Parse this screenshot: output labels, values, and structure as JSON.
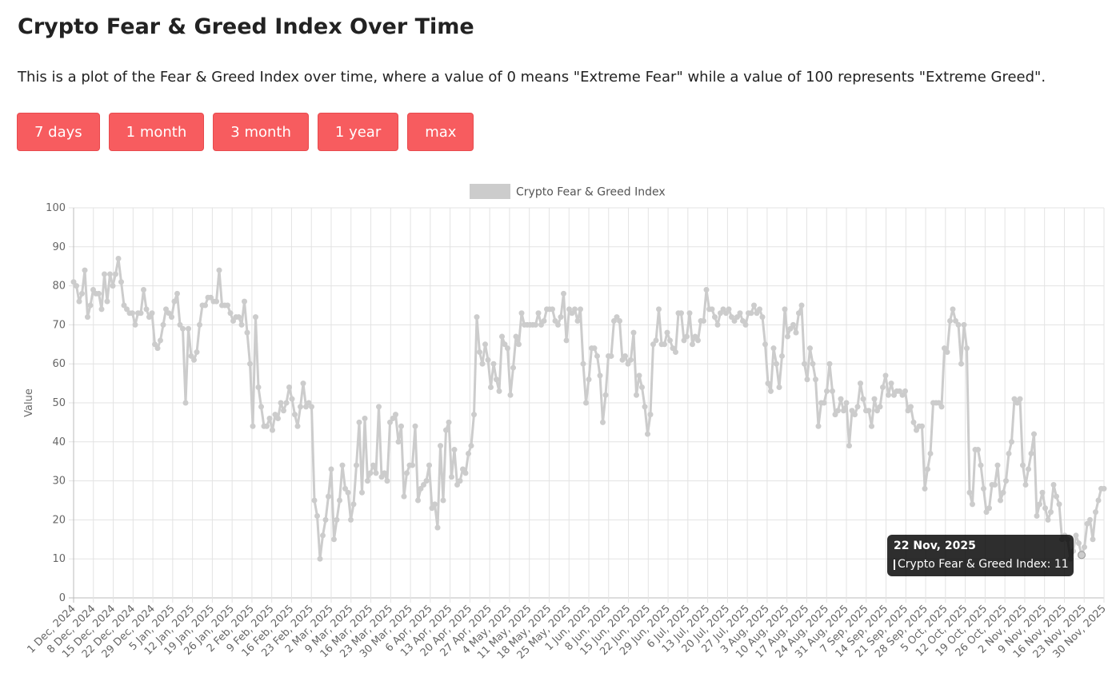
{
  "page": {
    "title": "Crypto Fear & Greed Index Over Time",
    "description": "This is a plot of the Fear & Greed Index over time, where a value of 0 means \"Extreme Fear\" while a value of 100 represents \"Extreme Greed\"."
  },
  "buttons": [
    {
      "label": "7 days"
    },
    {
      "label": "1 month"
    },
    {
      "label": "3 month"
    },
    {
      "label": "1 year"
    },
    {
      "label": "max"
    }
  ],
  "colors": {
    "button": "#f75c5f",
    "line": "#cccccc"
  },
  "tooltip": {
    "title": "22 Nov, 2025",
    "series": "Crypto Fear & Greed Index",
    "value": 11,
    "text": "Crypto Fear & Greed Index: 11"
  },
  "chart_data": {
    "type": "line",
    "ylabel": "Value",
    "ylim": [
      0,
      100
    ],
    "yticks": [
      0,
      10,
      20,
      30,
      40,
      50,
      60,
      70,
      80,
      90,
      100
    ],
    "grid": true,
    "legend_position": "top",
    "x_labels": [
      "1 Dec, 2024",
      "8 Dec, 2024",
      "15 Dec, 2024",
      "22 Dec, 2024",
      "29 Dec, 2024",
      "5 Jan, 2025",
      "12 Jan, 2025",
      "19 Jan, 2025",
      "26 Jan, 2025",
      "2 Feb, 2025",
      "9 Feb, 2025",
      "16 Feb, 2025",
      "23 Feb, 2025",
      "2 Mar, 2025",
      "9 Mar, 2025",
      "16 Mar, 2025",
      "23 Mar, 2025",
      "30 Mar, 2025",
      "6 Apr, 2025",
      "13 Apr, 2025",
      "20 Apr, 2025",
      "27 Apr, 2025",
      "4 May, 2025",
      "11 May, 2025",
      "18 May, 2025",
      "25 May, 2025",
      "1 Jun, 2025",
      "8 Jun, 2025",
      "15 Jun, 2025",
      "22 Jun, 2025",
      "29 Jun, 2025",
      "6 Jul, 2025",
      "13 Jul, 2025",
      "20 Jul, 2025",
      "27 Jul, 2025",
      "3 Aug, 2025",
      "10 Aug, 2025",
      "17 Aug, 2025",
      "24 Aug, 2025",
      "31 Aug, 2025",
      "7 Sep, 2025",
      "14 Sep, 2025",
      "21 Sep, 2025",
      "28 Sep, 2025",
      "5 Oct, 2025",
      "12 Oct, 2025",
      "19 Oct, 2025",
      "26 Oct, 2025",
      "2 Nov, 2025",
      "9 Nov, 2025",
      "16 Nov, 2025",
      "23 Nov, 2025",
      "30 Nov, 2025"
    ],
    "series": [
      {
        "name": "Crypto Fear & Greed Index",
        "values": [
          81,
          80,
          76,
          78,
          84,
          72,
          75,
          79,
          78,
          78,
          74,
          83,
          76,
          83,
          80,
          83,
          87,
          81,
          75,
          74,
          73,
          73,
          70,
          73,
          73,
          79,
          74,
          72,
          73,
          65,
          64,
          66,
          70,
          74,
          73,
          72,
          76,
          78,
          70,
          69,
          50,
          69,
          62,
          61,
          63,
          70,
          75,
          75,
          77,
          77,
          76,
          76,
          84,
          75,
          75,
          75,
          73,
          71,
          72,
          72,
          70,
          76,
          68,
          60,
          44,
          72,
          54,
          49,
          44,
          44,
          46,
          43,
          47,
          46,
          50,
          48,
          50,
          54,
          51,
          47,
          44,
          49,
          55,
          49,
          50,
          49,
          25,
          21,
          10,
          16,
          20,
          26,
          33,
          15,
          20,
          25,
          34,
          28,
          27,
          20,
          24,
          34,
          45,
          27,
          46,
          30,
          32,
          34,
          32,
          49,
          31,
          32,
          30,
          45,
          46,
          47,
          40,
          44,
          26,
          32,
          34,
          34,
          44,
          25,
          28,
          29,
          30,
          34,
          23,
          24,
          18,
          39,
          25,
          43,
          45,
          31,
          38,
          29,
          30,
          33,
          32,
          37,
          39,
          47,
          72,
          63,
          60,
          65,
          61,
          54,
          60,
          56,
          53,
          67,
          65,
          64,
          52,
          59,
          67,
          65,
          73,
          70,
          70,
          70,
          70,
          70,
          73,
          70,
          71,
          74,
          74,
          74,
          71,
          70,
          72,
          78,
          66,
          74,
          73,
          74,
          71,
          74,
          60,
          50,
          56,
          64,
          64,
          62,
          57,
          45,
          52,
          62,
          62,
          71,
          72,
          71,
          61,
          62,
          60,
          61,
          68,
          52,
          57,
          54,
          49,
          42,
          47,
          65,
          66,
          74,
          65,
          65,
          68,
          66,
          64,
          63,
          73,
          73,
          66,
          67,
          73,
          65,
          67,
          66,
          71,
          71,
          79,
          74,
          74,
          72,
          70,
          73,
          74,
          73,
          74,
          72,
          71,
          72,
          73,
          71,
          70,
          73,
          73,
          75,
          73,
          74,
          72,
          65,
          55,
          53,
          64,
          60,
          54,
          62,
          74,
          67,
          69,
          70,
          68,
          73,
          75,
          60,
          56,
          64,
          60,
          56,
          44,
          50,
          50,
          53,
          60,
          53,
          47,
          48,
          51,
          48,
          50,
          39,
          48,
          47,
          49,
          55,
          51,
          48,
          48,
          44,
          51,
          48,
          49,
          54,
          57,
          52,
          55,
          52,
          53,
          53,
          52,
          53,
          48,
          49,
          45,
          43,
          44,
          44,
          28,
          33,
          37,
          50,
          50,
          50,
          49,
          64,
          63,
          71,
          74,
          71,
          70,
          60,
          70,
          64,
          27,
          24,
          38,
          38,
          34,
          28,
          22,
          23,
          29,
          29,
          34,
          25,
          27,
          30,
          37,
          40,
          51,
          50,
          51,
          34,
          29,
          33,
          37,
          42,
          21,
          24,
          27,
          23,
          20,
          22,
          29,
          26,
          24,
          15,
          16,
          15,
          10,
          12,
          16,
          14,
          11,
          13,
          19,
          20,
          15,
          22,
          25,
          28,
          28
        ]
      }
    ]
  }
}
